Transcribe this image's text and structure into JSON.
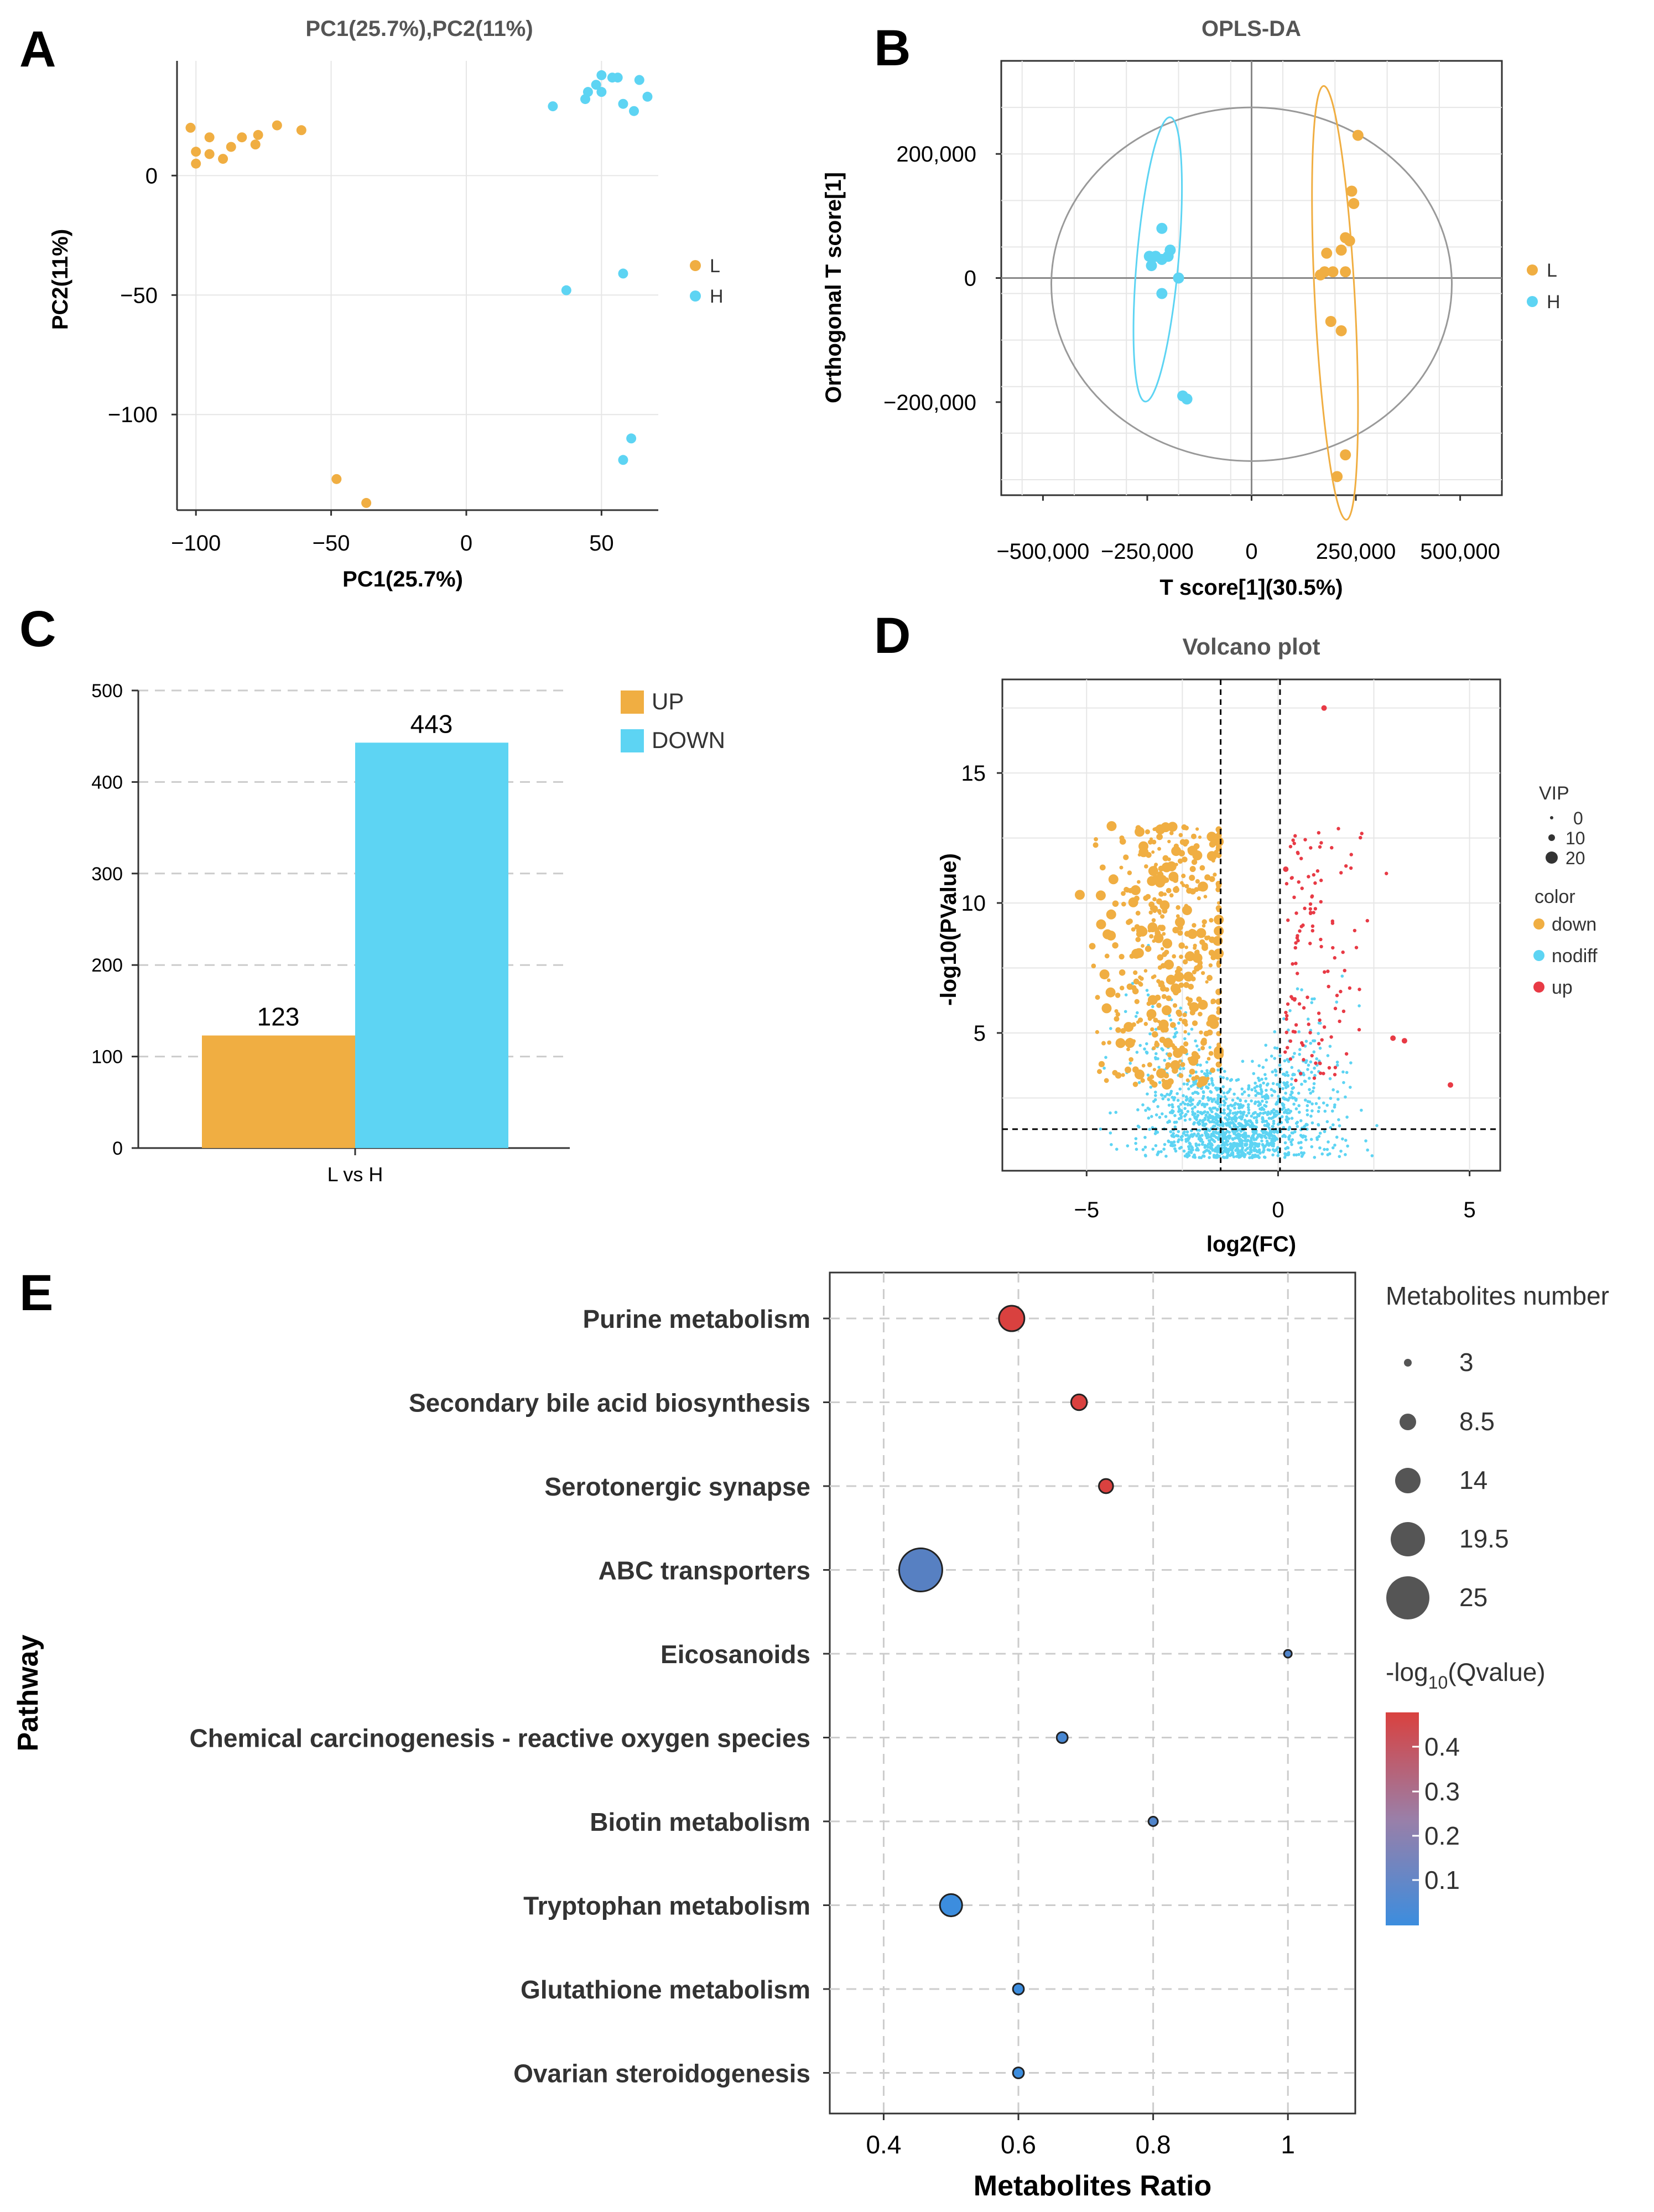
{
  "colors": {
    "orange": "#F0AE42",
    "cyan": "#5DD4F3",
    "red": "#E83A45",
    "grid": "#E6E6E6",
    "ellipse": "#999999",
    "qhigh": "#D9413F",
    "qlow": "#3C8DDE"
  },
  "chart_data": [
    {
      "panel": "A",
      "type": "scatter",
      "title": "PC1(25.7%),PC2(11%)",
      "xlabel": "PC1(25.7%)",
      "ylabel": "PC2(11%)",
      "xlim": [
        -107,
        71
      ],
      "ylim": [
        -140,
        48
      ],
      "xticks": [
        -100,
        -50,
        0,
        50
      ],
      "xtick_labels": [
        "−100",
        "−50",
        "0",
        "50"
      ],
      "yticks": [
        0,
        -50,
        -100
      ],
      "ytick_labels": [
        "0",
        "−50",
        "−100"
      ],
      "legend": [
        "L",
        "H"
      ],
      "series": [
        {
          "name": "L",
          "color_key": "orange",
          "points": [
            [
              -102,
              20
            ],
            [
              -100,
              10
            ],
            [
              -100,
              5
            ],
            [
              -95,
              16
            ],
            [
              -95,
              9
            ],
            [
              -90,
              7
            ],
            [
              -87,
              12
            ],
            [
              -83,
              16
            ],
            [
              -78,
              13
            ],
            [
              -77,
              17
            ],
            [
              -70,
              21
            ],
            [
              -61,
              19
            ],
            [
              -48,
              -127
            ],
            [
              -37,
              -137
            ]
          ]
        },
        {
          "name": "H",
          "color_key": "cyan",
          "points": [
            [
              32,
              29
            ],
            [
              44,
              32
            ],
            [
              45,
              35
            ],
            [
              48,
              38
            ],
            [
              50,
              42
            ],
            [
              50,
              35
            ],
            [
              54,
              41
            ],
            [
              56,
              41
            ],
            [
              58,
              30
            ],
            [
              62,
              27
            ],
            [
              64,
              40
            ],
            [
              67,
              33
            ],
            [
              37,
              -48
            ],
            [
              58,
              -41
            ],
            [
              58,
              -119
            ],
            [
              61,
              -110
            ]
          ]
        }
      ]
    },
    {
      "panel": "B",
      "type": "scatter",
      "title": "OPLS-DA",
      "xlabel": "T score[1](30.5%)",
      "ylabel": "Orthogonal T score[1]",
      "xlim": [
        -600000,
        600000
      ],
      "ylim": [
        -350000,
        350000
      ],
      "xticks": [
        -500000,
        -250000,
        0,
        250000,
        500000
      ],
      "xtick_labels": [
        "−500,000",
        "−250,000",
        "0",
        "250,000",
        "500,000"
      ],
      "yticks": [
        200000,
        0,
        -200000
      ],
      "ytick_labels": [
        "200,000",
        "0",
        "−200,000"
      ],
      "legend": [
        "L",
        "H"
      ],
      "series": [
        {
          "name": "L",
          "color_key": "orange",
          "points": [
            [
              255000,
              230000
            ],
            [
              240000,
              140000
            ],
            [
              245000,
              120000
            ],
            [
              225000,
              65000
            ],
            [
              235000,
              60000
            ],
            [
              215000,
              45000
            ],
            [
              180000,
              40000
            ],
            [
              175000,
              10000
            ],
            [
              195000,
              10000
            ],
            [
              225000,
              10000
            ],
            [
              165000,
              5000
            ],
            [
              190000,
              -70000
            ],
            [
              215000,
              -85000
            ],
            [
              225000,
              -285000
            ],
            [
              205000,
              -320000
            ]
          ]
        },
        {
          "name": "H",
          "color_key": "cyan",
          "points": [
            [
              -215000,
              80000
            ],
            [
              -195000,
              45000
            ],
            [
              -245000,
              35000
            ],
            [
              -230000,
              35000
            ],
            [
              -215000,
              30000
            ],
            [
              -200000,
              35000
            ],
            [
              -240000,
              20000
            ],
            [
              -175000,
              0
            ],
            [
              -215000,
              -25000
            ],
            [
              -165000,
              -190000
            ],
            [
              -155000,
              -195000
            ]
          ]
        }
      ],
      "ellipses": [
        {
          "name": "total",
          "cx": 0,
          "cy": -10000,
          "rx": 480000,
          "ry": 285000,
          "angle": 0,
          "color_key": "ellipse"
        },
        {
          "name": "L",
          "cx": 200000,
          "cy": -40000,
          "rx": 48000,
          "ry": 350000,
          "angle": -3,
          "color_key": "orange"
        },
        {
          "name": "H",
          "cx": -225000,
          "cy": 30000,
          "rx": 50000,
          "ry": 230000,
          "angle": 5,
          "color_key": "cyan"
        }
      ]
    },
    {
      "panel": "C",
      "type": "bar",
      "xlabel": "L vs H",
      "categories": [
        "L vs H"
      ],
      "series": [
        {
          "name": "UP",
          "color_key": "orange",
          "values": [
            123
          ]
        },
        {
          "name": "DOWN",
          "color_key": "cyan",
          "values": [
            443
          ]
        }
      ],
      "data_labels": [
        "123",
        "443"
      ],
      "ylim": [
        0,
        500
      ],
      "yticks": [
        0,
        100,
        200,
        300,
        400,
        500
      ],
      "legend": [
        "UP",
        "DOWN"
      ]
    },
    {
      "panel": "D",
      "type": "scatter",
      "title": "Volcano plot",
      "xlabel": "log2(FC)",
      "ylabel": "-log10(PValue)",
      "xlim": [
        -7.2,
        5.8
      ],
      "ylim": [
        -0.3,
        18.6
      ],
      "xticks": [
        -5,
        0,
        5
      ],
      "xtick_labels": [
        "−5",
        "0",
        "5"
      ],
      "yticks": [
        5,
        10,
        15
      ],
      "thresholds": {
        "fc_left": -1.5,
        "fc_right": 0.05,
        "p": 1.3
      },
      "legend_vip_title": "VIP",
      "legend_vip": [
        "0",
        "10",
        "20"
      ],
      "legend_color_title": "color",
      "legend_color": [
        "down",
        "nodiff",
        "up"
      ]
    },
    {
      "panel": "E",
      "type": "scatter",
      "xlabel": "Metabolites Ratio",
      "ylabel": "Pathway",
      "xlim": [
        0.32,
        1.1
      ],
      "xticks": [
        0.4,
        0.6,
        0.8,
        1.0
      ],
      "xtick_labels": [
        "0.4",
        "0.6",
        "0.8",
        "1"
      ],
      "size_legend_title": "Metabolites number",
      "size_legend": [
        "3",
        "8.5",
        "14",
        "19.5",
        "25"
      ],
      "color_legend_title": "-log10(Qvalue)",
      "color_legend": [
        "0.4",
        "0.3",
        "0.2",
        "0.1"
      ],
      "pathways": [
        {
          "name": "Purine metabolism",
          "ratio": 0.59,
          "count": 14,
          "q": 0.45
        },
        {
          "name": "Secondary bile acid biosynthesis",
          "ratio": 0.69,
          "count": 8,
          "q": 0.45
        },
        {
          "name": "Serotonergic synapse",
          "ratio": 0.73,
          "count": 7,
          "q": 0.45
        },
        {
          "name": "ABC transporters",
          "ratio": 0.455,
          "count": 25,
          "q": 0.12
        },
        {
          "name": "Eicosanoids",
          "ratio": 1.0,
          "count": 3,
          "q": 0.1
        },
        {
          "name": "Chemical carcinogenesis - reactive oxygen species",
          "ratio": 0.665,
          "count": 5,
          "q": 0.08
        },
        {
          "name": "Biotin metabolism",
          "ratio": 0.8,
          "count": 4,
          "q": 0.1
        },
        {
          "name": "Tryptophan metabolism",
          "ratio": 0.5,
          "count": 12,
          "q": 0.05
        },
        {
          "name": "Glutathione metabolism",
          "ratio": 0.6,
          "count": 5,
          "q": 0.05
        },
        {
          "name": "Ovarian steroidogenesis",
          "ratio": 0.6,
          "count": 5,
          "q": 0.05
        }
      ]
    }
  ],
  "panel_labels": {
    "a": "A",
    "b": "B",
    "c": "C",
    "d": "D",
    "e": "E"
  },
  "titles": {
    "a": "PC1(25.7%),PC2(11%)",
    "b": "OPLS-DA",
    "d": "Volcano plot"
  },
  "axis": {
    "a_x": "PC1(25.7%)",
    "a_y": "PC2(11%)",
    "b_x": "T score[1](30.5%)",
    "b_y": "Orthogonal T score[1]",
    "c_x": "L vs H",
    "d_x": "log2(FC)",
    "d_y": "-log10(PValue)",
    "e_x": "Metabolites Ratio",
    "e_y": "Pathway"
  },
  "legends": {
    "L": "L",
    "H": "H",
    "UP": "UP",
    "DOWN": "DOWN",
    "vip_title": "VIP",
    "vip0": "0",
    "vip10": "10",
    "vip20": "20",
    "color_title": "color",
    "down": "down",
    "nodiff": "nodiff",
    "up": "up",
    "mn_title": "Metabolites number",
    "mn1": "3",
    "mn2": "8.5",
    "mn3": "14",
    "mn4": "19.5",
    "mn5": "25",
    "q_prefix": "-log",
    "q_sub": "10",
    "q_suffix": "(Qvalue)",
    "q1": "0.4",
    "q2": "0.3",
    "q3": "0.2",
    "q4": "0.1"
  }
}
